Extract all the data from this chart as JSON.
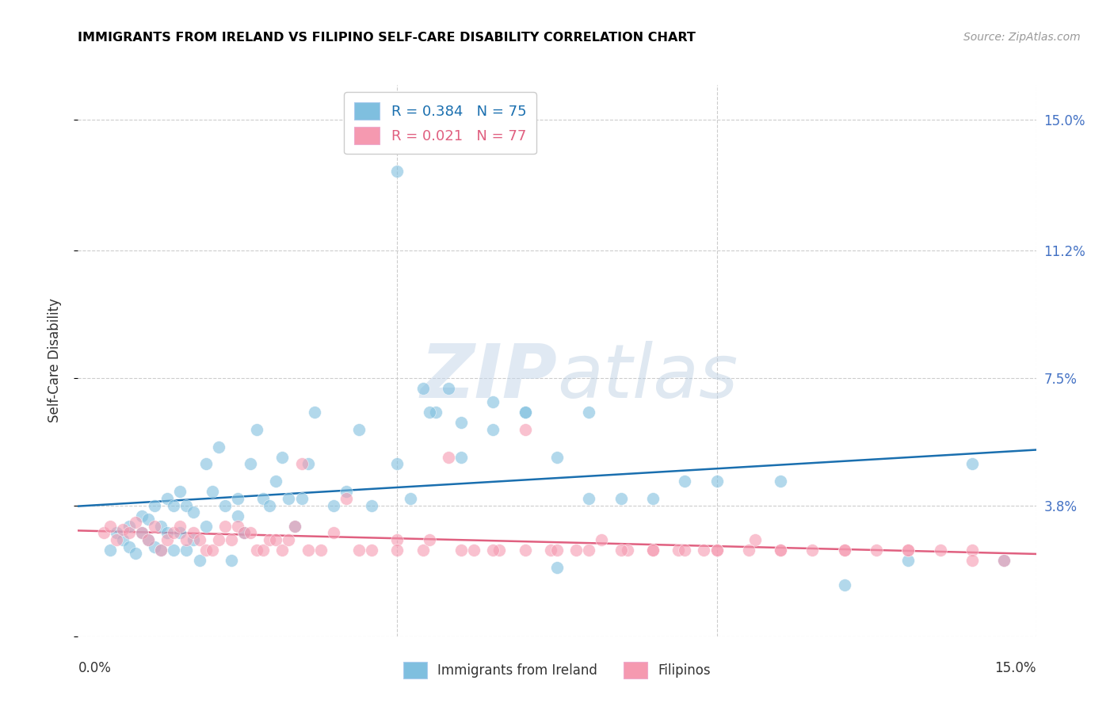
{
  "title": "IMMIGRANTS FROM IRELAND VS FILIPINO SELF-CARE DISABILITY CORRELATION CHART",
  "source": "Source: ZipAtlas.com",
  "ylabel": "Self-Care Disability",
  "ytick_vals": [
    0.0,
    0.038,
    0.075,
    0.112,
    0.15
  ],
  "ytick_labels": [
    "",
    "3.8%",
    "7.5%",
    "11.2%",
    "15.0%"
  ],
  "xtick_vals": [
    0.0,
    0.05,
    0.1,
    0.15
  ],
  "xlim": [
    0.0,
    0.15
  ],
  "ylim": [
    0.0,
    0.16
  ],
  "legend_r1": "R = 0.384",
  "legend_n1": "N = 75",
  "legend_r2": "R = 0.021",
  "legend_n2": "N = 77",
  "color_blue": "#7fbfdf",
  "color_pink": "#f599b0",
  "trendline_blue": "#1a6faf",
  "trendline_pink": "#e06080",
  "watermark_zip": "ZIP",
  "watermark_atlas": "atlas",
  "blue_x": [
    0.005,
    0.006,
    0.007,
    0.008,
    0.008,
    0.009,
    0.01,
    0.01,
    0.011,
    0.011,
    0.012,
    0.012,
    0.013,
    0.013,
    0.014,
    0.014,
    0.015,
    0.015,
    0.016,
    0.016,
    0.017,
    0.017,
    0.018,
    0.018,
    0.019,
    0.02,
    0.02,
    0.021,
    0.022,
    0.023,
    0.024,
    0.025,
    0.025,
    0.026,
    0.027,
    0.028,
    0.029,
    0.03,
    0.031,
    0.032,
    0.033,
    0.034,
    0.035,
    0.036,
    0.037,
    0.04,
    0.042,
    0.044,
    0.046,
    0.05,
    0.052,
    0.054,
    0.056,
    0.058,
    0.06,
    0.065,
    0.07,
    0.075,
    0.08,
    0.085,
    0.09,
    0.095,
    0.1,
    0.11,
    0.12,
    0.13,
    0.14,
    0.145,
    0.05,
    0.055,
    0.06,
    0.065,
    0.07,
    0.075,
    0.08
  ],
  "blue_y": [
    0.025,
    0.03,
    0.028,
    0.026,
    0.032,
    0.024,
    0.03,
    0.035,
    0.028,
    0.034,
    0.026,
    0.038,
    0.025,
    0.032,
    0.03,
    0.04,
    0.025,
    0.038,
    0.03,
    0.042,
    0.025,
    0.038,
    0.028,
    0.036,
    0.022,
    0.032,
    0.05,
    0.042,
    0.055,
    0.038,
    0.022,
    0.035,
    0.04,
    0.03,
    0.05,
    0.06,
    0.04,
    0.038,
    0.045,
    0.052,
    0.04,
    0.032,
    0.04,
    0.05,
    0.065,
    0.038,
    0.042,
    0.06,
    0.038,
    0.05,
    0.04,
    0.072,
    0.065,
    0.072,
    0.062,
    0.06,
    0.065,
    0.052,
    0.065,
    0.04,
    0.04,
    0.045,
    0.045,
    0.045,
    0.015,
    0.022,
    0.05,
    0.022,
    0.135,
    0.065,
    0.052,
    0.068,
    0.065,
    0.02,
    0.04
  ],
  "pink_x": [
    0.004,
    0.005,
    0.006,
    0.007,
    0.008,
    0.009,
    0.01,
    0.011,
    0.012,
    0.013,
    0.014,
    0.015,
    0.016,
    0.017,
    0.018,
    0.019,
    0.02,
    0.021,
    0.022,
    0.023,
    0.024,
    0.025,
    0.026,
    0.027,
    0.028,
    0.029,
    0.03,
    0.031,
    0.032,
    0.033,
    0.034,
    0.035,
    0.036,
    0.038,
    0.04,
    0.042,
    0.044,
    0.046,
    0.05,
    0.054,
    0.058,
    0.062,
    0.066,
    0.07,
    0.074,
    0.078,
    0.082,
    0.086,
    0.09,
    0.094,
    0.098,
    0.1,
    0.106,
    0.11,
    0.12,
    0.13,
    0.14,
    0.14,
    0.05,
    0.055,
    0.06,
    0.065,
    0.07,
    0.075,
    0.08,
    0.085,
    0.09,
    0.095,
    0.1,
    0.105,
    0.11,
    0.115,
    0.12,
    0.125,
    0.13,
    0.135,
    0.145
  ],
  "pink_y": [
    0.03,
    0.032,
    0.028,
    0.031,
    0.03,
    0.033,
    0.03,
    0.028,
    0.032,
    0.025,
    0.028,
    0.03,
    0.032,
    0.028,
    0.03,
    0.028,
    0.025,
    0.025,
    0.028,
    0.032,
    0.028,
    0.032,
    0.03,
    0.03,
    0.025,
    0.025,
    0.028,
    0.028,
    0.025,
    0.028,
    0.032,
    0.05,
    0.025,
    0.025,
    0.03,
    0.04,
    0.025,
    0.025,
    0.028,
    0.025,
    0.052,
    0.025,
    0.025,
    0.06,
    0.025,
    0.025,
    0.028,
    0.025,
    0.025,
    0.025,
    0.025,
    0.025,
    0.028,
    0.025,
    0.025,
    0.025,
    0.025,
    0.022,
    0.025,
    0.028,
    0.025,
    0.025,
    0.025,
    0.025,
    0.025,
    0.025,
    0.025,
    0.025,
    0.025,
    0.025,
    0.025,
    0.025,
    0.025,
    0.025,
    0.025,
    0.025,
    0.022
  ]
}
